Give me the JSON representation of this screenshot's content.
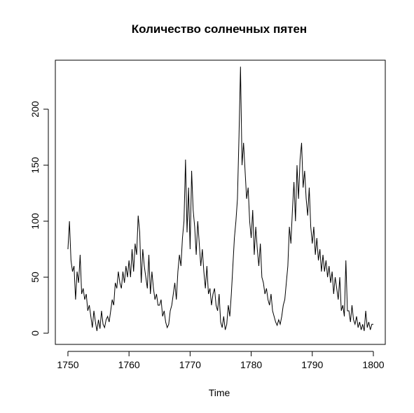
{
  "chart_data": {
    "type": "line",
    "title": "Количество солнечных пятен",
    "x_label": "Time",
    "color": "#000000",
    "xlim": [
      1747.94,
      1801.95
    ],
    "ylim": [
      -10,
      243.75
    ],
    "xticks": [
      1750,
      1760,
      1770,
      1780,
      1790,
      1800
    ],
    "yticks": [
      0,
      50,
      100,
      150,
      200
    ],
    "x": [
      1750,
      1750.25,
      1750.5,
      1750.75,
      1751,
      1751.25,
      1751.5,
      1751.75,
      1752,
      1752.25,
      1752.5,
      1752.75,
      1753,
      1753.25,
      1753.5,
      1753.75,
      1754,
      1754.25,
      1754.5,
      1754.75,
      1755,
      1755.25,
      1755.5,
      1755.75,
      1756,
      1756.25,
      1756.5,
      1756.75,
      1757,
      1757.25,
      1757.5,
      1757.75,
      1758,
      1758.25,
      1758.5,
      1758.75,
      1759,
      1759.25,
      1759.5,
      1759.75,
      1760,
      1760.25,
      1760.5,
      1760.75,
      1761,
      1761.25,
      1761.5,
      1761.75,
      1762,
      1762.25,
      1762.5,
      1762.75,
      1763,
      1763.25,
      1763.5,
      1763.75,
      1764,
      1764.25,
      1764.5,
      1764.75,
      1765,
      1765.25,
      1765.5,
      1765.75,
      1766,
      1766.25,
      1766.5,
      1766.75,
      1767,
      1767.25,
      1767.5,
      1767.75,
      1768,
      1768.25,
      1768.5,
      1768.75,
      1769,
      1769.25,
      1769.5,
      1769.75,
      1770,
      1770.25,
      1770.5,
      1770.75,
      1771,
      1771.25,
      1771.5,
      1771.75,
      1772,
      1772.25,
      1772.5,
      1772.75,
      1773,
      1773.25,
      1773.5,
      1773.75,
      1774,
      1774.25,
      1774.5,
      1774.75,
      1775,
      1775.25,
      1775.5,
      1775.75,
      1776,
      1776.25,
      1776.5,
      1776.75,
      1777,
      1777.25,
      1777.5,
      1777.75,
      1778,
      1778.25,
      1778.5,
      1778.75,
      1779,
      1779.25,
      1779.5,
      1779.75,
      1780,
      1780.25,
      1780.5,
      1780.75,
      1781,
      1781.25,
      1781.5,
      1781.75,
      1782,
      1782.25,
      1782.5,
      1782.75,
      1783,
      1783.25,
      1783.5,
      1783.75,
      1784,
      1784.25,
      1784.5,
      1784.75,
      1785,
      1785.25,
      1785.5,
      1785.75,
      1786,
      1786.25,
      1786.5,
      1786.75,
      1787,
      1787.25,
      1787.5,
      1787.75,
      1788,
      1788.25,
      1788.5,
      1788.75,
      1789,
      1789.25,
      1789.5,
      1789.75,
      1790,
      1790.25,
      1790.5,
      1790.75,
      1791,
      1791.25,
      1791.5,
      1791.75,
      1792,
      1792.25,
      1792.5,
      1792.75,
      1793,
      1793.25,
      1793.5,
      1793.75,
      1794,
      1794.25,
      1794.5,
      1794.75,
      1795,
      1795.25,
      1795.5,
      1795.75,
      1796,
      1796.25,
      1796.5,
      1796.75,
      1797,
      1797.25,
      1797.5,
      1797.75,
      1798,
      1798.25,
      1798.5,
      1798.75,
      1799,
      1799.25,
      1799.5,
      1799.75,
      1800
    ],
    "values": [
      75,
      100,
      65,
      55,
      60,
      30,
      55,
      45,
      70,
      35,
      40,
      30,
      35,
      20,
      25,
      15,
      5,
      20,
      10,
      2,
      12,
      4,
      20,
      8,
      5,
      12,
      15,
      10,
      20,
      30,
      25,
      45,
      40,
      55,
      45,
      40,
      55,
      45,
      60,
      50,
      65,
      50,
      75,
      55,
      80,
      70,
      105,
      90,
      45,
      75,
      60,
      50,
      40,
      70,
      35,
      55,
      40,
      30,
      35,
      25,
      25,
      30,
      15,
      20,
      10,
      5,
      8,
      20,
      25,
      35,
      45,
      30,
      55,
      70,
      60,
      85,
      100,
      155,
      90,
      130,
      75,
      145,
      110,
      95,
      70,
      100,
      80,
      60,
      75,
      55,
      40,
      60,
      35,
      40,
      25,
      35,
      40,
      25,
      20,
      35,
      10,
      5,
      15,
      3,
      8,
      25,
      15,
      35,
      60,
      85,
      100,
      120,
      175,
      238,
      150,
      170,
      145,
      120,
      130,
      100,
      85,
      110,
      70,
      95,
      75,
      60,
      80,
      50,
      45,
      35,
      40,
      30,
      25,
      35,
      20,
      15,
      10,
      7,
      12,
      8,
      15,
      25,
      30,
      45,
      60,
      95,
      80,
      110,
      135,
      100,
      150,
      120,
      155,
      170,
      130,
      145,
      120,
      105,
      130,
      95,
      80,
      95,
      70,
      85,
      65,
      75,
      55,
      70,
      55,
      65,
      50,
      60,
      45,
      55,
      35,
      50,
      40,
      30,
      50,
      20,
      25,
      15,
      65,
      20,
      20,
      10,
      25,
      12,
      8,
      15,
      5,
      10,
      3,
      8,
      2,
      20,
      5,
      10,
      3,
      8,
      8
    ]
  }
}
